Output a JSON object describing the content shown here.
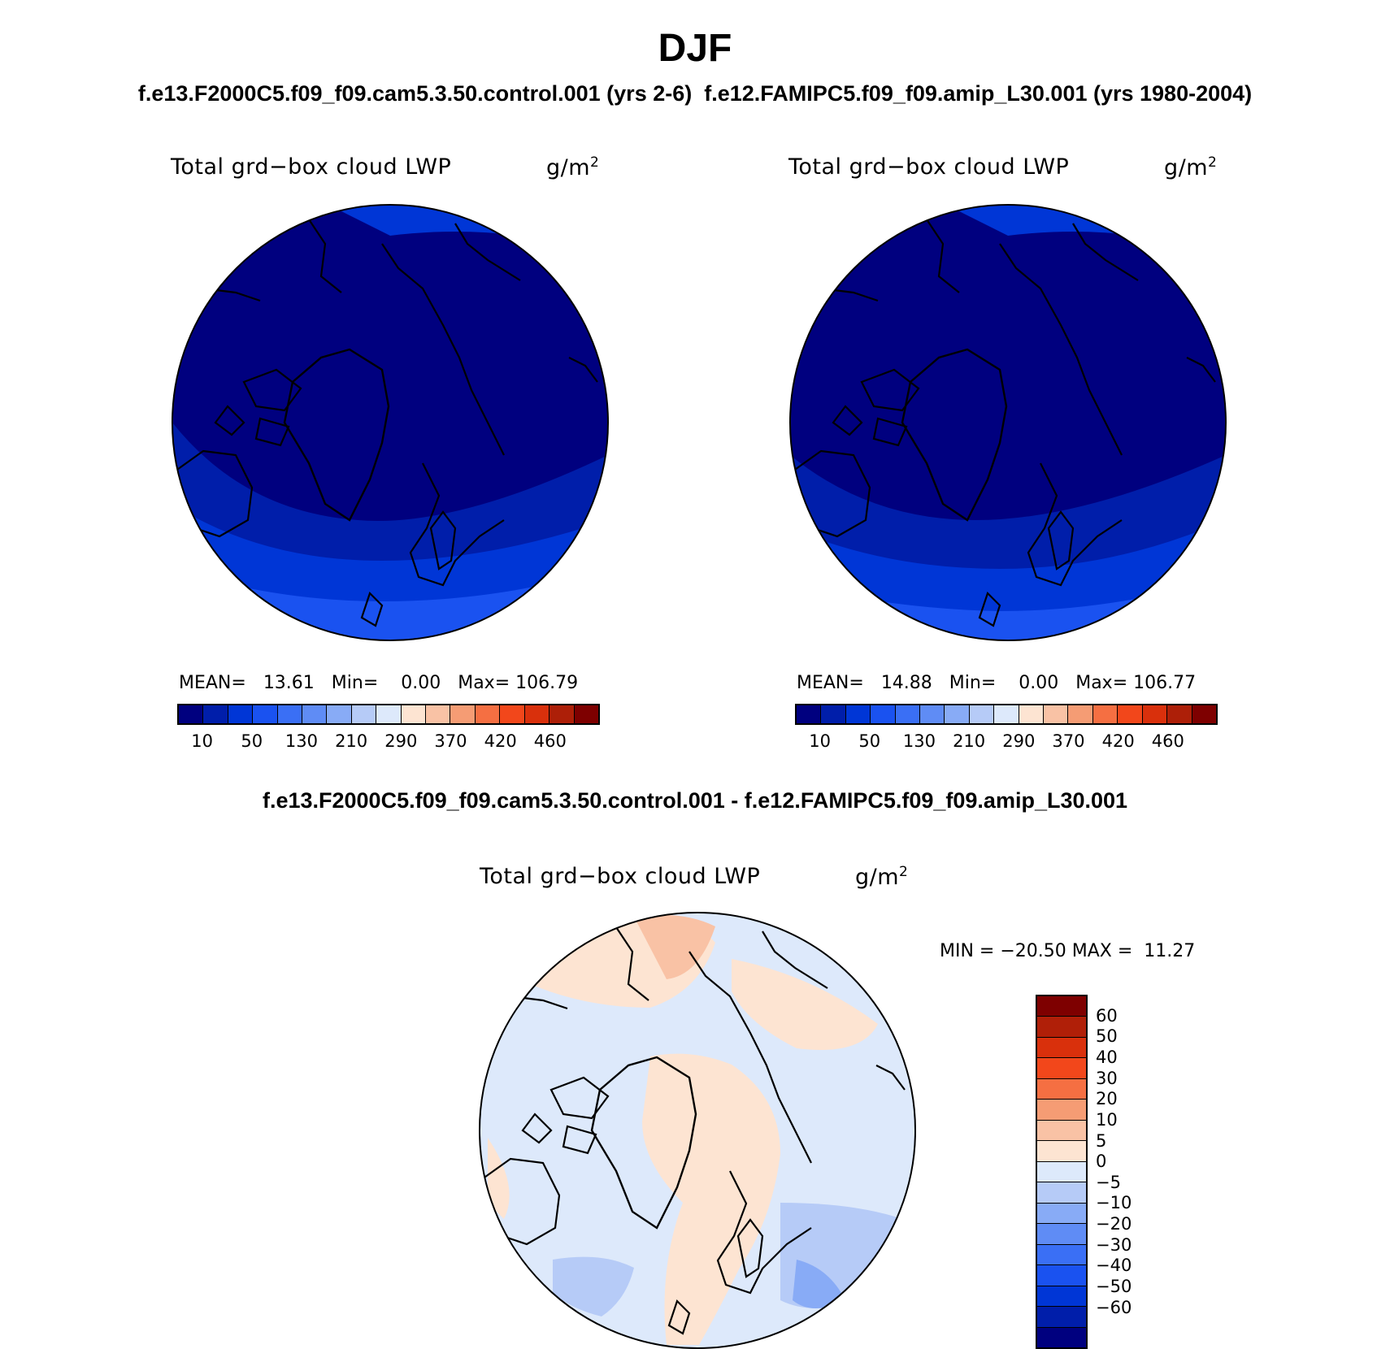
{
  "season": "DJF",
  "header": {
    "case_a": "f.e13.F2000C5.f09_f09.cam5.3.50.control.001 (yrs 2-6)",
    "case_b": "f.e12.FAMIPC5.f09_f09.amip_L30.001 (yrs 1980-2004)"
  },
  "panels": [
    {
      "variable": "Total grd−box cloud LWP",
      "units_base": "g/m",
      "units_exp": "2",
      "stats": {
        "mean_label": "MEAN=",
        "mean": "13.61",
        "min_label": "Min=",
        "min": "0.00",
        "max_label": "Max=",
        "max": "106.79"
      }
    },
    {
      "variable": "Total grd−box cloud LWP",
      "units_base": "g/m",
      "units_exp": "2",
      "stats": {
        "mean_label": "MEAN=",
        "mean": "14.88",
        "min_label": "Min=",
        "min": "0.00",
        "max_label": "Max=",
        "max": "106.77"
      }
    }
  ],
  "abs_colorbar": {
    "colors": [
      "#00007f",
      "#001eaa",
      "#0036d6",
      "#1a52f0",
      "#3a6ff5",
      "#5f8cf5",
      "#88abf6",
      "#b6cbf7",
      "#dde9fb",
      "#fde4d2",
      "#f9c2a5",
      "#f59c74",
      "#f56f42",
      "#f2471b",
      "#d9300c",
      "#ad1f08",
      "#7e0000"
    ],
    "labels": [
      "10",
      "50",
      "130",
      "210",
      "290",
      "370",
      "420",
      "460"
    ]
  },
  "diff": {
    "title": "f.e13.F2000C5.f09_f09.cam5.3.50.control.001 - f.e12.FAMIPC5.f09_f09.amip_L30.001",
    "variable": "Total grd−box cloud LWP",
    "units_base": "g/m",
    "units_exp": "2",
    "minmax": "MIN = −20.50 MAX =  11.27",
    "colorbar": {
      "colors_top_to_bottom": [
        "#7e0000",
        "#b01f08",
        "#d9300c",
        "#f2471b",
        "#f56f42",
        "#f59c74",
        "#f9c2a5",
        "#fde4d2",
        "#dde9fb",
        "#b6cbf7",
        "#88abf6",
        "#5f8cf5",
        "#3a6ff5",
        "#1a52f0",
        "#0036d6",
        "#001eaa",
        "#00007f"
      ],
      "labels": [
        "60",
        "50",
        "40",
        "30",
        "20",
        "10",
        "5",
        "0",
        "−5",
        "−10",
        "−20",
        "−30",
        "−40",
        "−50",
        "−60"
      ]
    }
  }
}
